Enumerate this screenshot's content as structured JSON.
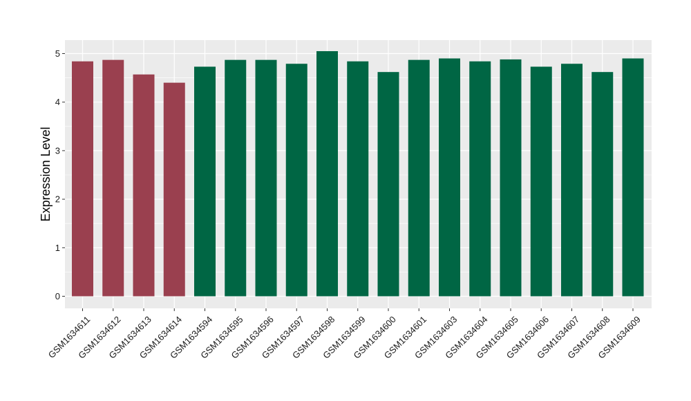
{
  "chart_data": {
    "type": "bar",
    "title": "",
    "xlabel": "",
    "ylabel": "Expression Level",
    "ylim": [
      0,
      5.2
    ],
    "yticks": [
      0,
      1,
      2,
      3,
      4,
      5
    ],
    "grid": true,
    "legend": "none",
    "categories": [
      "GSM1634611",
      "GSM1634612",
      "GSM1634613",
      "GSM1634614",
      "GSM1634594",
      "GSM1634595",
      "GSM1634596",
      "GSM1634597",
      "GSM1634598",
      "GSM1634599",
      "GSM1634600",
      "GSM1634601",
      "GSM1634603",
      "GSM1634604",
      "GSM1634605",
      "GSM1634606",
      "GSM1634607",
      "GSM1634608",
      "GSM1634609"
    ],
    "values": [
      4.84,
      4.87,
      4.57,
      4.4,
      4.73,
      4.87,
      4.87,
      4.79,
      5.05,
      4.84,
      4.62,
      4.87,
      4.9,
      4.84,
      4.88,
      4.73,
      4.79,
      4.62,
      4.9
    ],
    "bar_groups": [
      "red",
      "red",
      "red",
      "red",
      "green",
      "green",
      "green",
      "green",
      "green",
      "green",
      "green",
      "green",
      "green",
      "green",
      "green",
      "green",
      "green",
      "green",
      "green"
    ],
    "colors": {
      "red": "#9a404f",
      "green": "#006644",
      "panel": "#ebebeb",
      "grid": "#ffffff"
    }
  }
}
